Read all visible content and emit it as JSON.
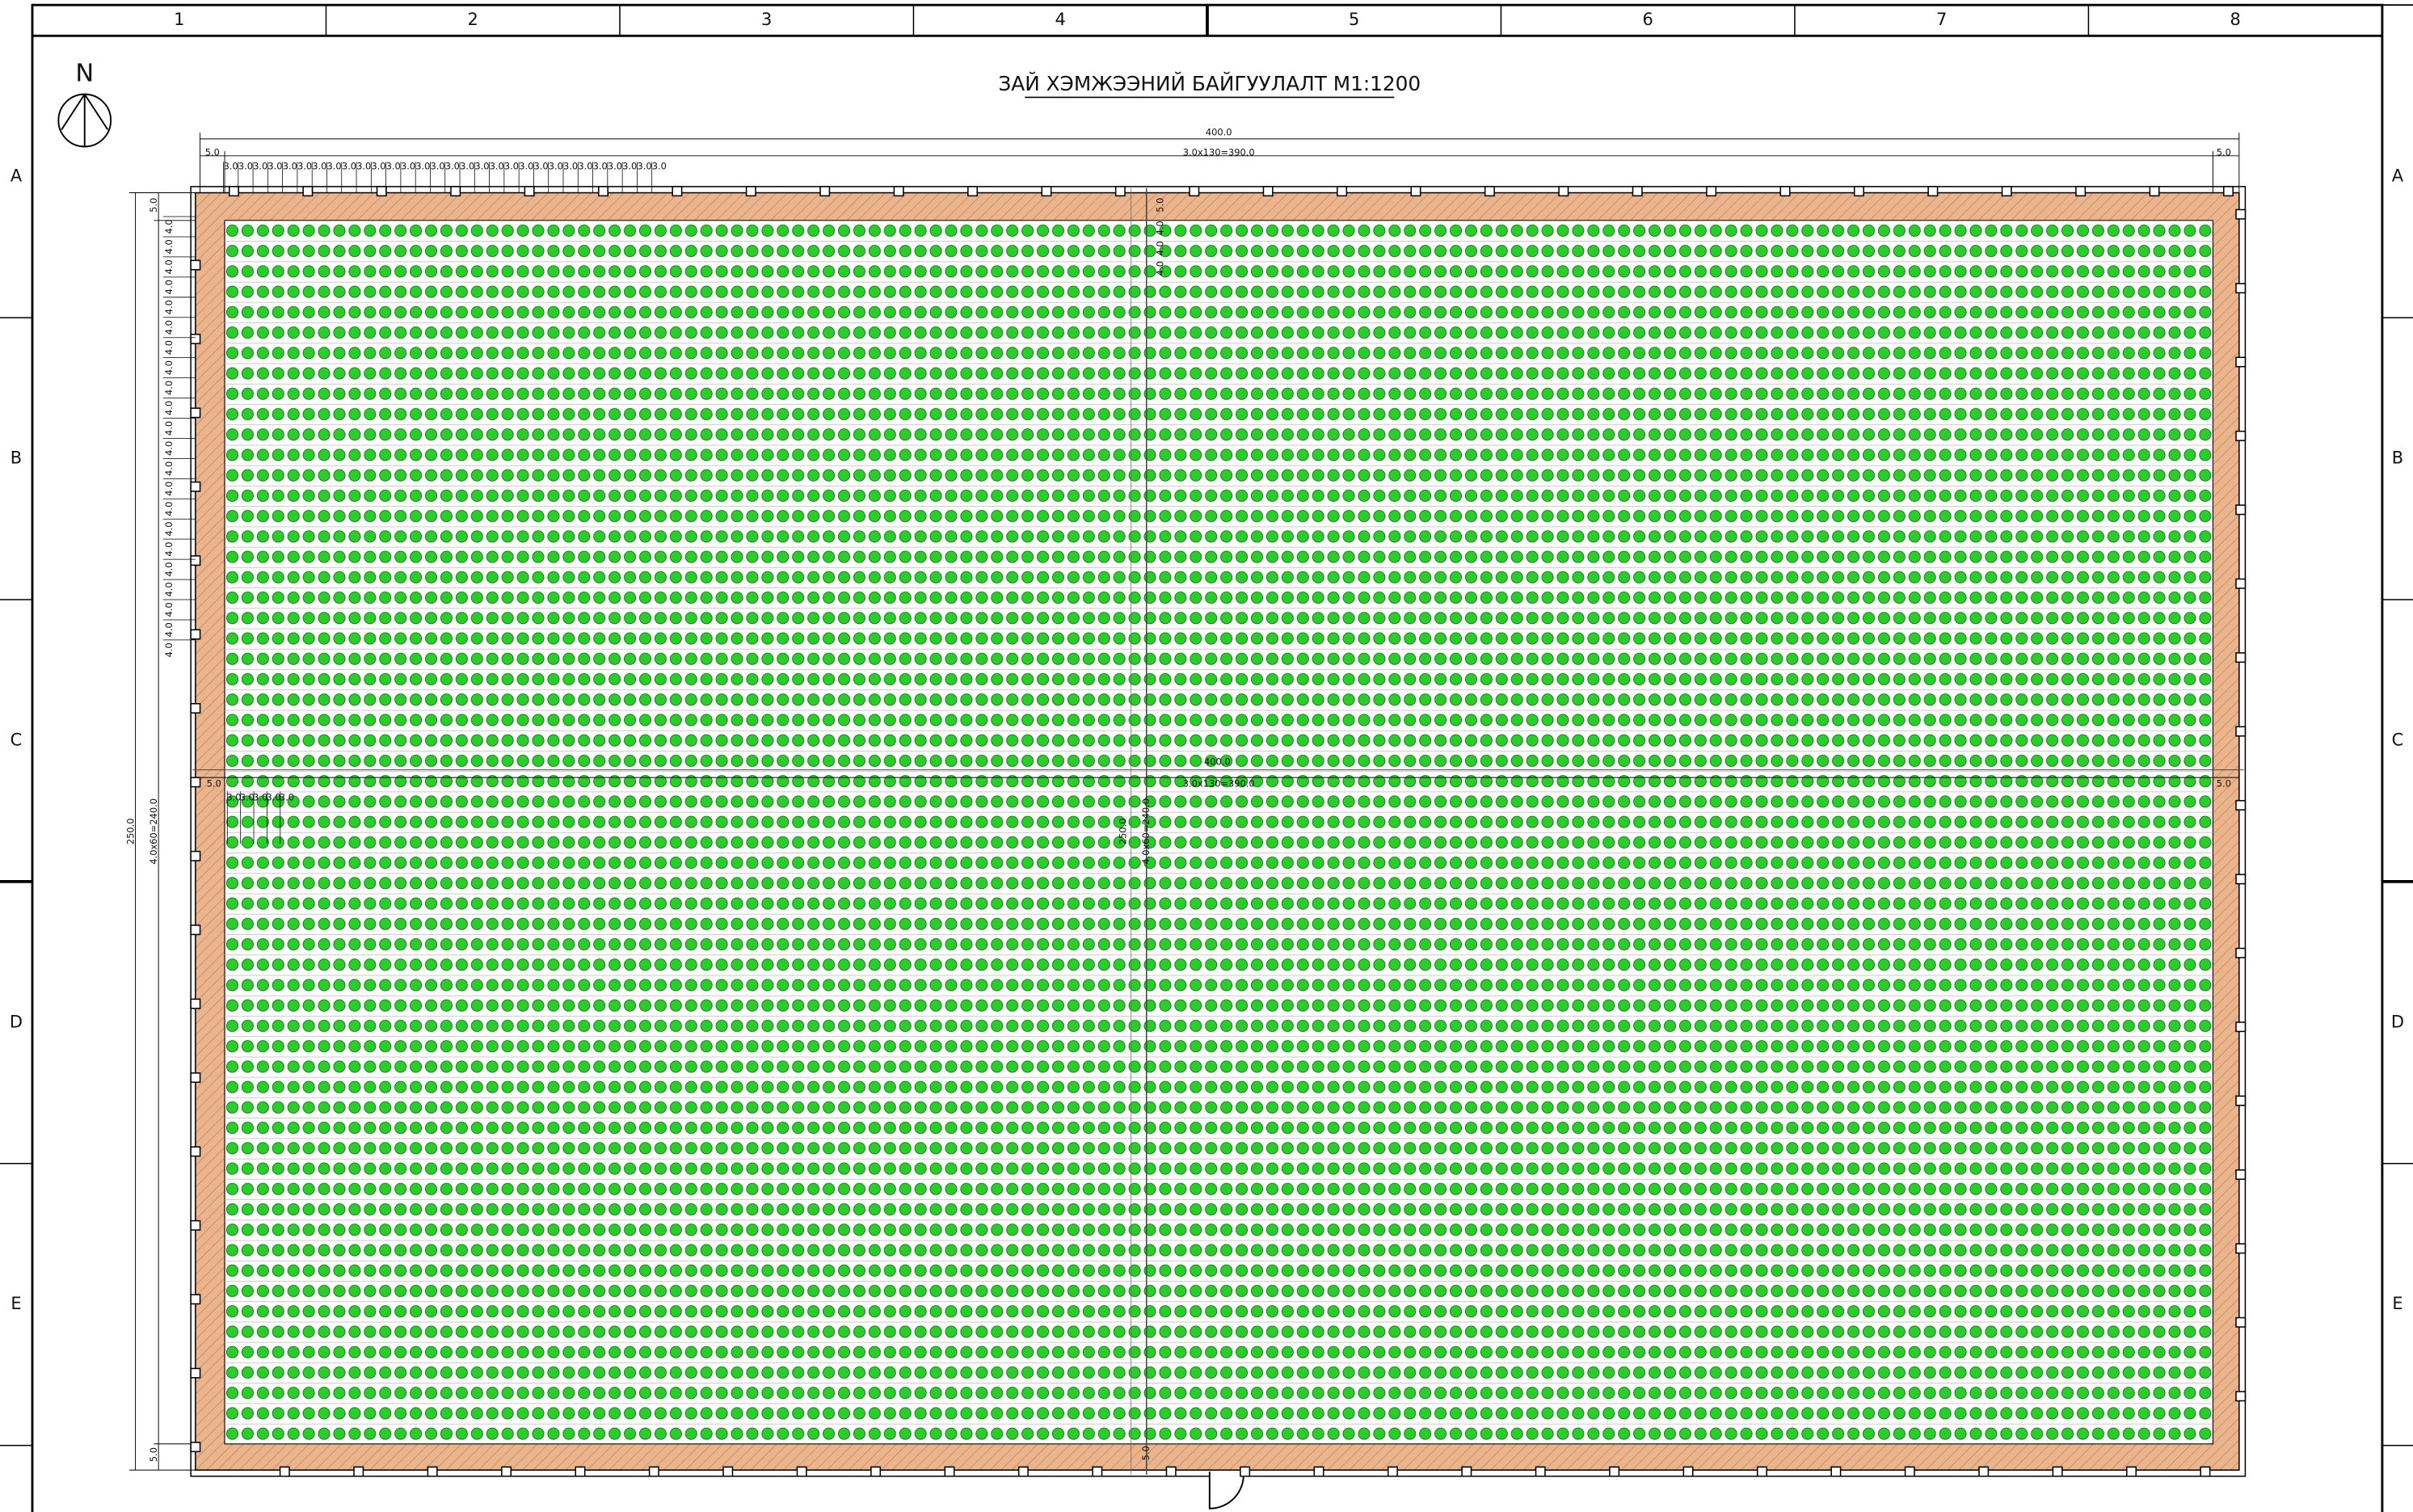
{
  "header": {
    "columns": [
      "1",
      "2",
      "3",
      "4",
      "5",
      "6",
      "7",
      "8"
    ],
    "rows": [
      "A",
      "B",
      "C",
      "D",
      "E"
    ]
  },
  "north": "N",
  "title": "ЗАЙ ХЭМЖЭЭНИЙ БАЙГУУЛАЛТ М1:1200",
  "dimensions": {
    "total_width": "400.0",
    "width_spacing": "3.0x130=390.0",
    "edge": "5.0",
    "spacing_x": "3.0",
    "total_height": "250.0",
    "height_spacing": "4.0x60=240.0",
    "spacing_y": "4.0"
  }
}
